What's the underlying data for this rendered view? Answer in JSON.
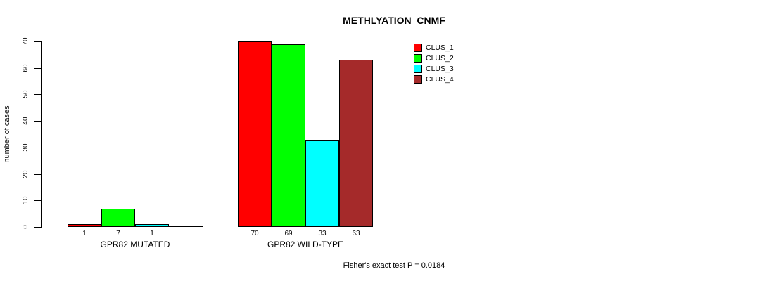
{
  "page": {
    "background": "#FFFFFF",
    "text_color": "#000000",
    "axis_color": "#000000"
  },
  "chart_data": {
    "type": "bar",
    "title": "METHLYATION_CNMF",
    "ylabel": "number of cases",
    "xlabel": "",
    "ylim": [
      0,
      70
    ],
    "yticks": [
      0,
      10,
      20,
      30,
      40,
      50,
      60,
      70
    ],
    "grid": false,
    "legend_position": "top-right",
    "categories": [
      "GPR82 MUTATED",
      "GPR82 WILD-TYPE"
    ],
    "series": [
      {
        "name": "CLUS_1",
        "color": "#FF0000",
        "values": [
          1,
          70
        ]
      },
      {
        "name": "CLUS_2",
        "color": "#00FF00",
        "values": [
          7,
          69
        ]
      },
      {
        "name": "CLUS_3",
        "color": "#00FFFF",
        "values": [
          1,
          33
        ]
      },
      {
        "name": "CLUS_4",
        "color": "#A52A2A",
        "values": [
          0,
          63
        ]
      }
    ],
    "bar_value_labels": [
      [
        "1",
        "7",
        "1",
        ""
      ],
      [
        "70",
        "69",
        "33",
        "63"
      ]
    ],
    "annotation": "Fisher's exact test P = 0.0184"
  }
}
